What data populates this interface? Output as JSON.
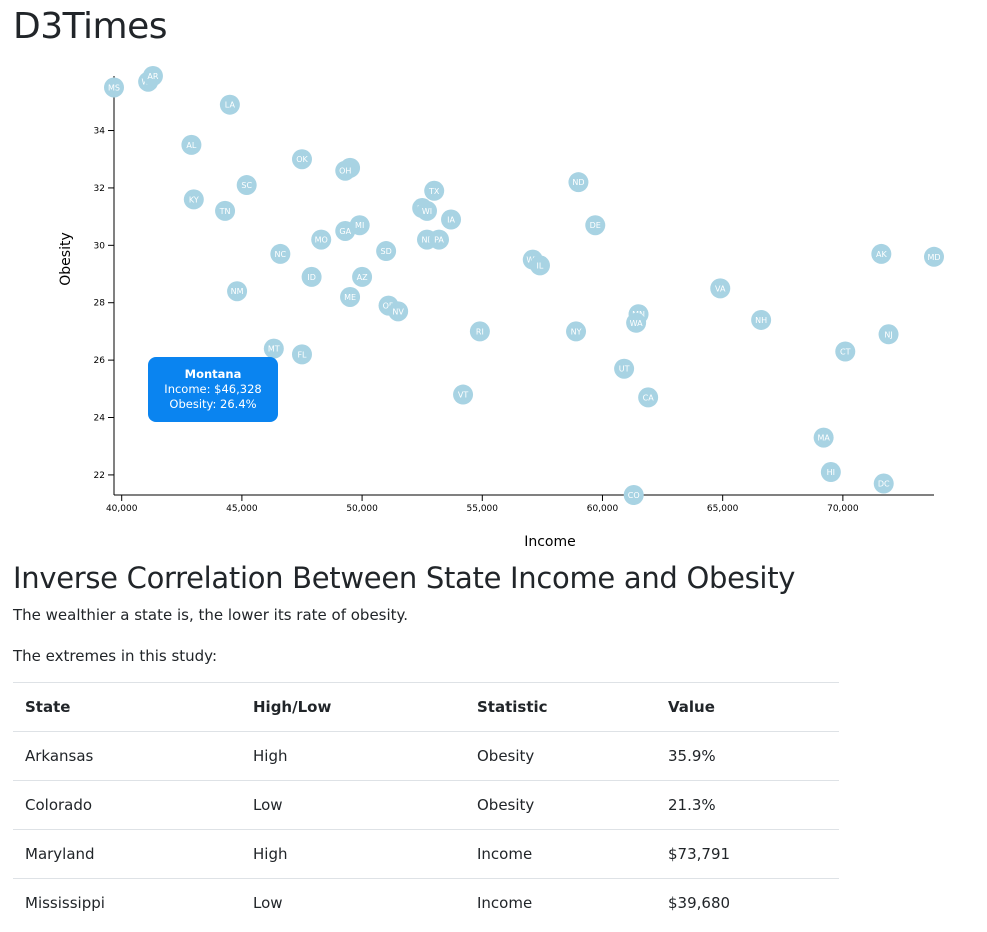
{
  "site": {
    "title": "D3Times"
  },
  "chart_data": {
    "type": "scatter",
    "xlabel": "Income",
    "ylabel": "Obesity",
    "xlim": [
      39680,
      73791
    ],
    "ylim": [
      21.3,
      35.9
    ],
    "x_ticks": [
      "40,000",
      "45,000",
      "50,000",
      "55,000",
      "60,000",
      "65,000",
      "70,000"
    ],
    "y_ticks": [
      "22",
      "24",
      "26",
      "28",
      "30",
      "32",
      "34"
    ],
    "points": [
      {
        "abbr": "MS",
        "x": 39680,
        "y": 35.5
      },
      {
        "abbr": "WV",
        "x": 41100,
        "y": 35.7
      },
      {
        "abbr": "AR",
        "x": 41300,
        "y": 35.9
      },
      {
        "abbr": "LA",
        "x": 44500,
        "y": 34.9
      },
      {
        "abbr": "AL",
        "x": 42900,
        "y": 33.5
      },
      {
        "abbr": "KY",
        "x": 43000,
        "y": 31.6
      },
      {
        "abbr": "TN",
        "x": 44300,
        "y": 31.2
      },
      {
        "abbr": "SC",
        "x": 45200,
        "y": 32.1
      },
      {
        "abbr": "OK",
        "x": 47500,
        "y": 33.0
      },
      {
        "abbr": "IN",
        "x": 49500,
        "y": 32.7
      },
      {
        "abbr": "OH",
        "x": 49300,
        "y": 32.6
      },
      {
        "abbr": "NM",
        "x": 44800,
        "y": 28.4
      },
      {
        "abbr": "NC",
        "x": 46600,
        "y": 29.7
      },
      {
        "abbr": "MO",
        "x": 48300,
        "y": 30.2
      },
      {
        "abbr": "GA",
        "x": 49300,
        "y": 30.5
      },
      {
        "abbr": "MI",
        "x": 49900,
        "y": 30.7
      },
      {
        "abbr": "ID",
        "x": 47900,
        "y": 28.9
      },
      {
        "abbr": "AZ",
        "x": 50000,
        "y": 28.9
      },
      {
        "abbr": "ME",
        "x": 49500,
        "y": 28.2
      },
      {
        "abbr": "SD",
        "x": 51000,
        "y": 29.8
      },
      {
        "abbr": "OR",
        "x": 51100,
        "y": 27.9
      },
      {
        "abbr": "NV",
        "x": 51500,
        "y": 27.7
      },
      {
        "abbr": "MT",
        "x": 46328,
        "y": 26.4
      },
      {
        "abbr": "FL",
        "x": 47500,
        "y": 26.2
      },
      {
        "abbr": "TX",
        "x": 53000,
        "y": 31.9
      },
      {
        "abbr": "KS",
        "x": 52500,
        "y": 31.3
      },
      {
        "abbr": "WI",
        "x": 52700,
        "y": 31.2
      },
      {
        "abbr": "IA",
        "x": 53700,
        "y": 30.9
      },
      {
        "abbr": "NE",
        "x": 52700,
        "y": 30.2
      },
      {
        "abbr": "PA",
        "x": 53200,
        "y": 30.2
      },
      {
        "abbr": "RI",
        "x": 54900,
        "y": 27.0
      },
      {
        "abbr": "VT",
        "x": 54200,
        "y": 24.8
      },
      {
        "abbr": "WY",
        "x": 57100,
        "y": 29.5
      },
      {
        "abbr": "IL",
        "x": 57400,
        "y": 29.3
      },
      {
        "abbr": "ND",
        "x": 59000,
        "y": 32.2
      },
      {
        "abbr": "DE",
        "x": 59700,
        "y": 30.7
      },
      {
        "abbr": "NY",
        "x": 58900,
        "y": 27.0
      },
      {
        "abbr": "UT",
        "x": 60900,
        "y": 25.7
      },
      {
        "abbr": "CA",
        "x": 61900,
        "y": 24.7
      },
      {
        "abbr": "CO",
        "x": 61300,
        "y": 21.3
      },
      {
        "abbr": "MN",
        "x": 61500,
        "y": 27.6
      },
      {
        "abbr": "WA",
        "x": 61400,
        "y": 27.3
      },
      {
        "abbr": "VA",
        "x": 64900,
        "y": 28.5
      },
      {
        "abbr": "NH",
        "x": 66600,
        "y": 27.4
      },
      {
        "abbr": "CT",
        "x": 70100,
        "y": 26.3
      },
      {
        "abbr": "MA",
        "x": 69200,
        "y": 23.3
      },
      {
        "abbr": "HI",
        "x": 69500,
        "y": 22.1
      },
      {
        "abbr": "DC",
        "x": 71700,
        "y": 21.7
      },
      {
        "abbr": "AK",
        "x": 71600,
        "y": 29.7
      },
      {
        "abbr": "NJ",
        "x": 71900,
        "y": 26.9
      },
      {
        "abbr": "MD",
        "x": 73791,
        "y": 29.6
      }
    ],
    "tooltip": {
      "name": "Montana",
      "income": "Income: $46,328",
      "obesity": "Obesity: 26.4%"
    }
  },
  "article": {
    "headline": "Inverse Correlation Between State Income and Obesity",
    "lead": "The wealthier a state is, the lower its rate of obesity.",
    "extremes_intro": "The extremes in this study:",
    "table": {
      "headers": [
        "State",
        "High/Low",
        "Statistic",
        "Value"
      ],
      "rows": [
        [
          "Arkansas",
          "High",
          "Obesity",
          "35.9%"
        ],
        [
          "Colorado",
          "Low",
          "Obesity",
          "21.3%"
        ],
        [
          "Maryland",
          "High",
          "Income",
          "$73,791"
        ],
        [
          "Mississippi",
          "Low",
          "Income",
          "$39,680"
        ]
      ]
    }
  }
}
